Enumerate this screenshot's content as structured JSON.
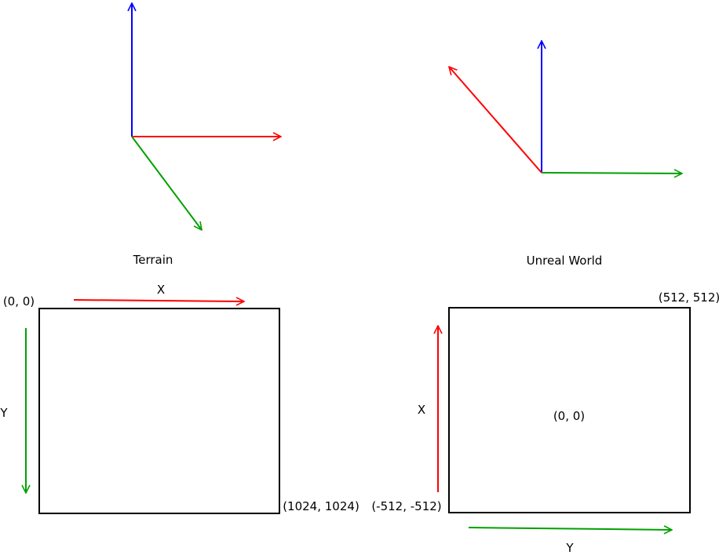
{
  "colors": {
    "x_axis": "#ff0000",
    "y_axis": "#00a000",
    "z_axis": "#0000ff",
    "outline": "#000000"
  },
  "terrain": {
    "caption": "Terrain",
    "x_label": "X",
    "y_label": "Y",
    "origin_label": "(0, 0)",
    "corner_label": "(1024, 1024)"
  },
  "unreal": {
    "caption": "Unreal World",
    "x_label": "X",
    "y_label": "Y",
    "center_label": "(0, 0)",
    "corner_max_label": "(512, 512)",
    "corner_min_label": "(-512, -512)"
  }
}
